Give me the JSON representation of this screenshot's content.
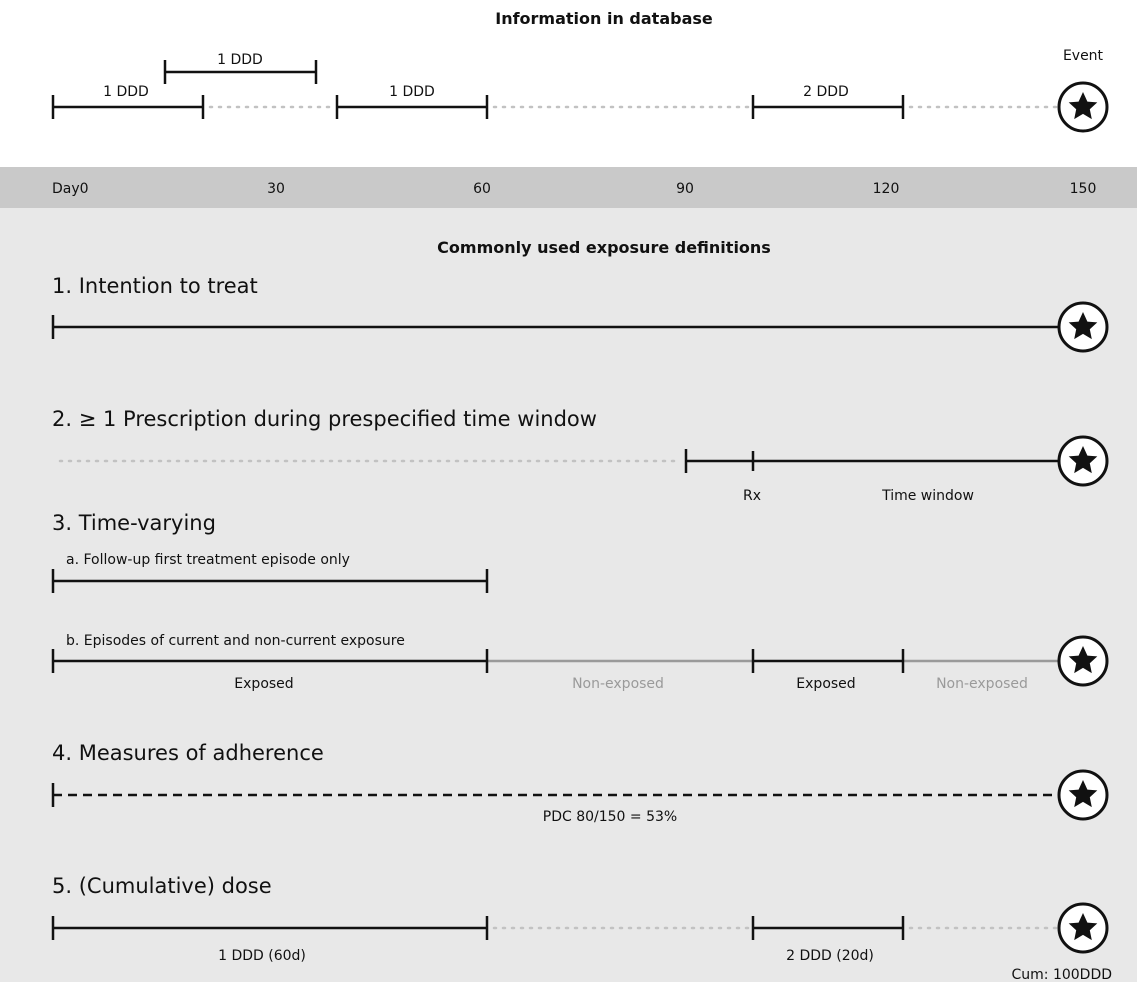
{
  "header": {
    "title": "Information in database",
    "event_label": "Event",
    "dose_labels": [
      "1 DDD",
      "1 DDD",
      "1 DDD",
      "2 DDD"
    ]
  },
  "axis": {
    "ticks": [
      "Day0",
      "30",
      "60",
      "90",
      "120",
      "150"
    ]
  },
  "definitions": {
    "title": "Commonly used exposure definitions",
    "itt": {
      "label": "1. Intention to treat"
    },
    "prescription_window": {
      "label": "2.  ≥ 1  Prescription during prespecified time window",
      "rx_label": "Rx",
      "window_label": "Time window"
    },
    "time_varying": {
      "label": "3. Time-varying",
      "a_label": "a. Follow-up first treatment episode only",
      "b_label": "b. Episodes of current and non-current exposure",
      "states": [
        "Exposed",
        "Non-exposed",
        "Exposed",
        "Non-exposed"
      ]
    },
    "adherence": {
      "label": "4. Measures of adherence",
      "pdc_label": "PDC 80/150 = 53%"
    },
    "cumulative_dose": {
      "label": "5. (Cumulative) dose",
      "seg1_label": "1 DDD (60d)",
      "seg2_label": "2 DDD (20d)",
      "total_label": "Cum: 100DDD"
    }
  }
}
